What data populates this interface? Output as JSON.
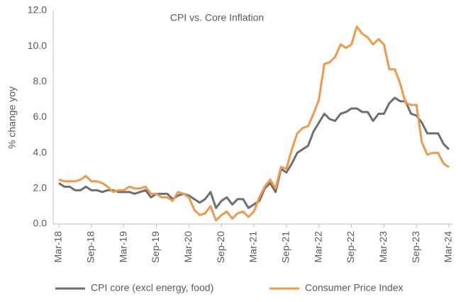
{
  "chart_data": {
    "type": "line",
    "title": "CPI vs. Core Inflation",
    "y_label": "% change yoy",
    "categories": [
      "Mar-18",
      null,
      null,
      null,
      null,
      null,
      "Sep-18",
      null,
      null,
      null,
      null,
      null,
      "Mar-19",
      null,
      null,
      null,
      null,
      null,
      "Sep-19",
      null,
      null,
      null,
      null,
      null,
      "Mar-20",
      null,
      null,
      null,
      null,
      null,
      "Sep-20",
      null,
      null,
      null,
      null,
      null,
      "Mar-21",
      null,
      null,
      null,
      null,
      null,
      "Sep-21",
      null,
      null,
      null,
      null,
      null,
      "Mar-22",
      null,
      null,
      null,
      null,
      null,
      "Sep-22",
      null,
      null,
      null,
      null,
      null,
      "Mar-23",
      null,
      null,
      null,
      null,
      null,
      "Sep-23",
      null,
      null,
      null,
      null,
      null,
      "Mar-24"
    ],
    "series": [
      {
        "name": "CPI core (excl energy, food)",
        "color": "#6e6e6e",
        "values": [
          2.3,
          2.1,
          2.1,
          1.9,
          1.9,
          2.1,
          1.9,
          1.9,
          1.8,
          1.9,
          1.9,
          1.8,
          1.8,
          1.8,
          1.7,
          1.8,
          1.9,
          1.5,
          1.7,
          1.7,
          1.7,
          1.4,
          1.6,
          1.7,
          1.6,
          1.4,
          1.2,
          1.4,
          1.8,
          0.9,
          1.3,
          1.5,
          1.1,
          1.4,
          1.4,
          0.9,
          1.1,
          1.3,
          2.0,
          2.3,
          1.8,
          3.1,
          2.9,
          3.4,
          4.0,
          4.2,
          4.4,
          5.2,
          5.7,
          6.2,
          5.9,
          5.8,
          6.2,
          6.3,
          6.5,
          6.5,
          6.3,
          6.3,
          5.8,
          6.2,
          6.2,
          6.8,
          7.1,
          6.9,
          6.9,
          6.2,
          6.1,
          5.7,
          5.1,
          5.1,
          5.1,
          4.5,
          4.2
        ]
      },
      {
        "name": "Consumer Price Index",
        "color": "#f0994a",
        "values": [
          2.5,
          2.4,
          2.4,
          2.4,
          2.5,
          2.7,
          2.4,
          2.4,
          2.3,
          2.1,
          1.8,
          1.9,
          1.9,
          2.1,
          2.0,
          2.0,
          2.1,
          1.7,
          1.7,
          1.5,
          1.5,
          1.3,
          1.8,
          1.7,
          1.5,
          0.8,
          0.5,
          0.6,
          1.0,
          0.2,
          0.5,
          0.7,
          0.3,
          0.6,
          0.7,
          0.4,
          0.7,
          1.5,
          2.1,
          2.5,
          2.0,
          3.2,
          3.1,
          4.2,
          5.1,
          5.4,
          5.5,
          6.2,
          7.0,
          9.0,
          9.1,
          9.4,
          10.1,
          9.9,
          10.1,
          11.1,
          10.7,
          10.5,
          10.1,
          10.4,
          10.1,
          8.7,
          8.7,
          7.9,
          6.8,
          6.7,
          6.7,
          4.6,
          3.9,
          4.0,
          4.0,
          3.4,
          3.2
        ]
      }
    ],
    "ylim": [
      0,
      12
    ],
    "yticks": [
      {
        "value": 0,
        "label": "0.0"
      },
      {
        "value": 2,
        "label": "2.0"
      },
      {
        "value": 4,
        "label": "4.0"
      },
      {
        "value": 6,
        "label": "6.0"
      },
      {
        "value": 8,
        "label": "8.0"
      },
      {
        "value": 10,
        "label": "10.0"
      },
      {
        "value": 12,
        "label": "12.0"
      }
    ],
    "grid": false,
    "legend": "bottom"
  }
}
